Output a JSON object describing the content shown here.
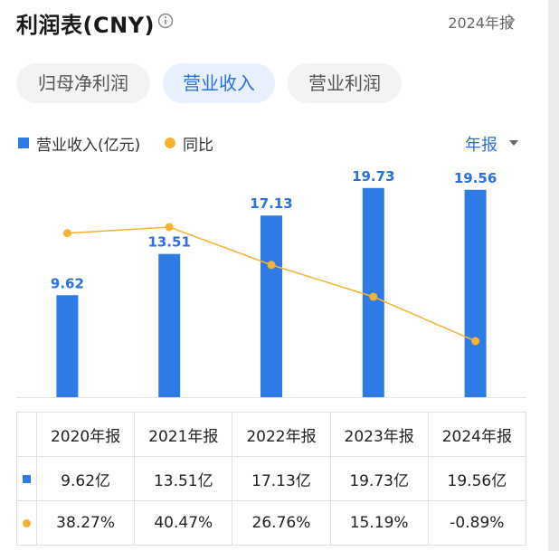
{
  "header": {
    "title": "利润表(CNY)",
    "period_link": "2024年报"
  },
  "tabs": [
    {
      "label": "归母净利润",
      "active": false
    },
    {
      "label": "营业收入",
      "active": true
    },
    {
      "label": "营业利润",
      "active": false
    }
  ],
  "legend": {
    "bar_label": "营业收入(亿元)",
    "line_label": "同比"
  },
  "period_select": "年报",
  "colors": {
    "bar": "#2f7be6",
    "line": "#f5b331",
    "positive": "#e64545",
    "negative": "#2aa24a",
    "accent": "#2b6fe0"
  },
  "chart_data": {
    "type": "bar",
    "categories": [
      "2020年报",
      "2021年报",
      "2022年报",
      "2023年报",
      "2024年报"
    ],
    "series": [
      {
        "name": "营业收入(亿元)",
        "type": "bar",
        "values": [
          9.62,
          13.51,
          17.13,
          19.73,
          19.56
        ],
        "labels": [
          "9.62",
          "13.51",
          "17.13",
          "19.73",
          "19.56"
        ]
      },
      {
        "name": "同比",
        "type": "line",
        "values": [
          38.27,
          40.47,
          26.76,
          15.19,
          -0.89
        ]
      }
    ],
    "grid": false,
    "legend_position": "top-left"
  },
  "table": {
    "headers": [
      "2020年报",
      "2021年报",
      "2022年报",
      "2023年报",
      "2024年报"
    ],
    "revenue": [
      "9.62亿",
      "13.51亿",
      "17.13亿",
      "19.73亿",
      "19.56亿"
    ],
    "yoy": [
      "38.27%",
      "40.47%",
      "26.76%",
      "15.19%",
      "-0.89%"
    ]
  }
}
